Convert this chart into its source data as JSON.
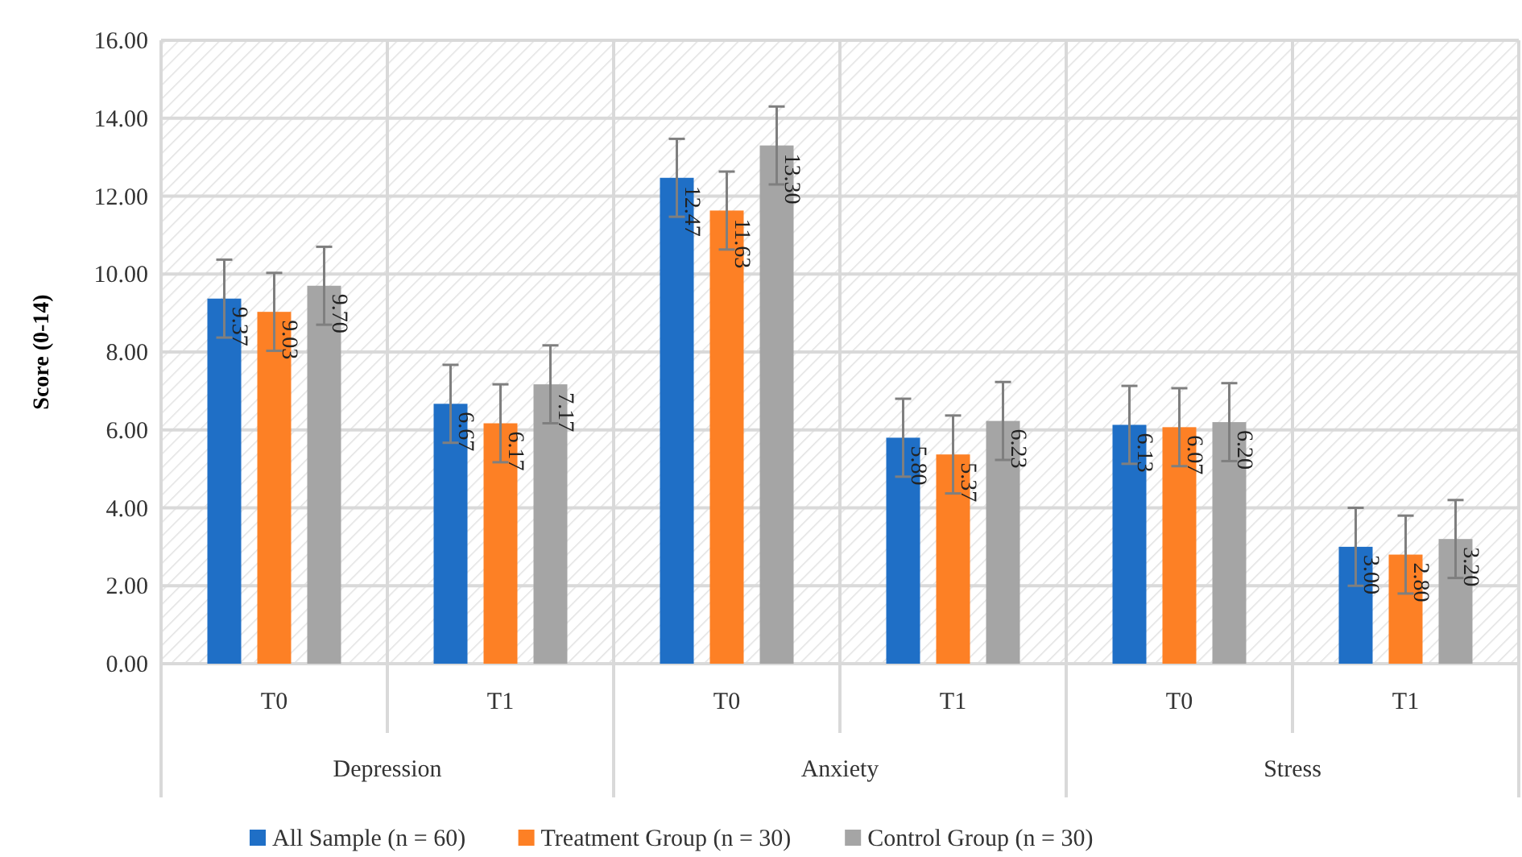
{
  "chart_data": {
    "type": "bar",
    "ylabel": "Score (0-14)",
    "categories": [
      "T0",
      "T1",
      "T0",
      "T1",
      "T0",
      "T1"
    ],
    "annotations": [
      "Depression",
      "Anxiety",
      "Stress"
    ],
    "series": [
      {
        "name": "All Sample (n = 60)",
        "color": "#1f6fc6",
        "values": [
          9.37,
          6.67,
          12.47,
          5.8,
          6.13,
          3.0
        ],
        "value_labels": [
          "9.37",
          "6.67",
          "12.47",
          "5.80",
          "6.13",
          "3.00"
        ],
        "errors": [
          1,
          1,
          1,
          1,
          1,
          1
        ]
      },
      {
        "name": "Treatment Group (n = 30)",
        "color": "#fd8025",
        "values": [
          9.03,
          6.17,
          11.63,
          5.37,
          6.07,
          2.8
        ],
        "value_labels": [
          "9.03",
          "6.17",
          "11.63",
          "5.37",
          "6.07",
          "2.80"
        ],
        "errors": [
          1,
          1,
          1,
          1,
          1,
          1
        ]
      },
      {
        "name": "Control Group (n = 30)",
        "color": "#a5a5a5",
        "values": [
          9.7,
          7.17,
          13.3,
          6.23,
          6.2,
          3.2
        ],
        "value_labels": [
          "9.70",
          "7.17",
          "13.30",
          "6.23",
          "6.20",
          "3.20"
        ],
        "errors": [
          1,
          1,
          1,
          1,
          1,
          1
        ]
      }
    ],
    "ylim": [
      0,
      16
    ],
    "yticks": [
      {
        "value": 0,
        "label": "0.00"
      },
      {
        "value": 2,
        "label": "2.00"
      },
      {
        "value": 4,
        "label": "4.00"
      },
      {
        "value": 6,
        "label": "6.00"
      },
      {
        "value": 8,
        "label": "8.00"
      },
      {
        "value": 10,
        "label": "10.00"
      },
      {
        "value": 12,
        "label": "12.00"
      },
      {
        "value": 14,
        "label": "14.00"
      },
      {
        "value": 16,
        "label": "16.00"
      }
    ],
    "grid": true,
    "legend": "bottom"
  }
}
